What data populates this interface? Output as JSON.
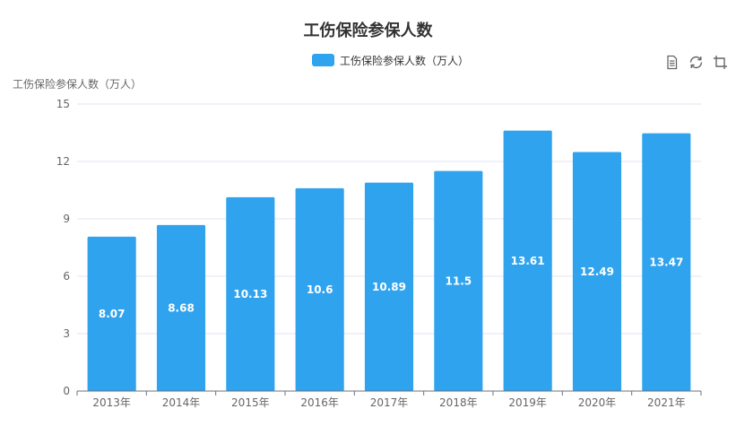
{
  "chart_data": {
    "type": "bar",
    "title": "工伤保险参保人数",
    "ylabel": "工伤保险参保人数（万人）",
    "xlabel": "",
    "categories": [
      "2013年",
      "2014年",
      "2015年",
      "2016年",
      "2017年",
      "2018年",
      "2019年",
      "2020年",
      "2021年"
    ],
    "series": [
      {
        "name": "工伤保险参保人数（万人）",
        "values": [
          8.07,
          8.68,
          10.13,
          10.6,
          10.89,
          11.5,
          13.61,
          12.49,
          13.47
        ]
      }
    ],
    "ylim": [
      0,
      15
    ],
    "yticks": [
      "0",
      "3",
      "6",
      "9",
      "12",
      "15"
    ],
    "grid": true,
    "legend_position": "top-center",
    "bar_color": "#2fa3ee"
  },
  "toolbox": {
    "data_view_icon": "data-view-icon",
    "restore_icon": "restore-icon",
    "save_icon": "save-image-icon"
  }
}
